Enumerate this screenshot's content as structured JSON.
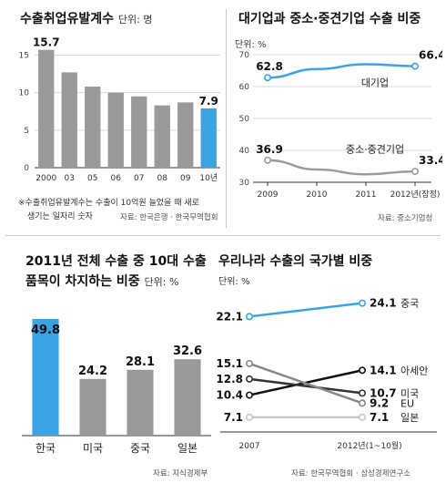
{
  "colors": {
    "accent": "#3aa3e3",
    "bar": "#999999",
    "line_gray": "#9c9c9c",
    "line_dark": "#111111",
    "line_light": "#c8c8c8"
  },
  "chart_data": [
    {
      "type": "bar",
      "title": "수출취업유발계수",
      "unit": "단위: 명",
      "categories": [
        "2000",
        "03",
        "05",
        "06",
        "07",
        "08",
        "09",
        "10년"
      ],
      "values": [
        15.7,
        12.7,
        10.8,
        10.0,
        9.5,
        8.3,
        8.7,
        7.9
      ],
      "value_labels": [
        "15.7",
        "",
        "",
        "",
        "",
        "",
        "",
        "7.9"
      ],
      "highlight_index": 7,
      "ylim": [
        0,
        17
      ],
      "yticks": [
        0,
        5,
        10,
        15
      ],
      "note": [
        "※수출취업유발계수는 수출이 10억원 늘었을 때 새로",
        "생기는 일자리 숫자"
      ],
      "source": "자료: 한국은행 · 한국무역협회"
    },
    {
      "type": "line",
      "title": "대기업과 중소·중견기업 수출 비중",
      "unit": "단위: %",
      "categories": [
        "2009",
        "2010",
        "2011",
        "2012년(잠정)"
      ],
      "ylim": [
        30,
        70
      ],
      "yticks": [
        30,
        40,
        50,
        60,
        70
      ],
      "series": [
        {
          "name": "대기업",
          "values": [
            62.8,
            65.5,
            67.0,
            66.4
          ],
          "labels": [
            "62.8",
            "",
            "",
            "66.4"
          ],
          "color": "#3aa3e3"
        },
        {
          "name": "중소·중견기업",
          "values": [
            36.9,
            34.0,
            32.5,
            33.4
          ],
          "labels": [
            "36.9",
            "",
            "",
            "33.4"
          ],
          "color": "#9c9c9c"
        }
      ],
      "source": "자료: 중소기업청"
    },
    {
      "type": "bar",
      "title_lines": [
        "2011년 전체 수출 중 10대 수출",
        "품목이 차지하는 비중"
      ],
      "unit": "단위: %",
      "categories": [
        "한국",
        "미국",
        "중국",
        "일본"
      ],
      "values": [
        49.8,
        24.2,
        28.1,
        32.6
      ],
      "value_labels": [
        "49.8",
        "24.2",
        "28.1",
        "32.6"
      ],
      "highlight_index": 0,
      "source": "자료: 지식경제부"
    },
    {
      "type": "line",
      "title": "우리나라 수출의 국가별 비중",
      "unit": "단위: %",
      "categories": [
        "2007",
        "2012년(1~10월)"
      ],
      "series": [
        {
          "name": "중국",
          "values": [
            22.1,
            24.1
          ],
          "color": "#3aa3e3"
        },
        {
          "name": "아세안",
          "values": [
            10.4,
            14.1
          ],
          "color": "#111111"
        },
        {
          "name": "미국",
          "values": [
            12.8,
            10.7
          ],
          "color": "#333333"
        },
        {
          "name": "EU",
          "values": [
            15.1,
            9.2
          ],
          "color": "#888888"
        },
        {
          "name": "일본",
          "values": [
            7.1,
            7.1
          ],
          "color": "#c8c8c8"
        }
      ],
      "source": "자료: 한국무역협회 · 삼성경제연구소"
    }
  ]
}
